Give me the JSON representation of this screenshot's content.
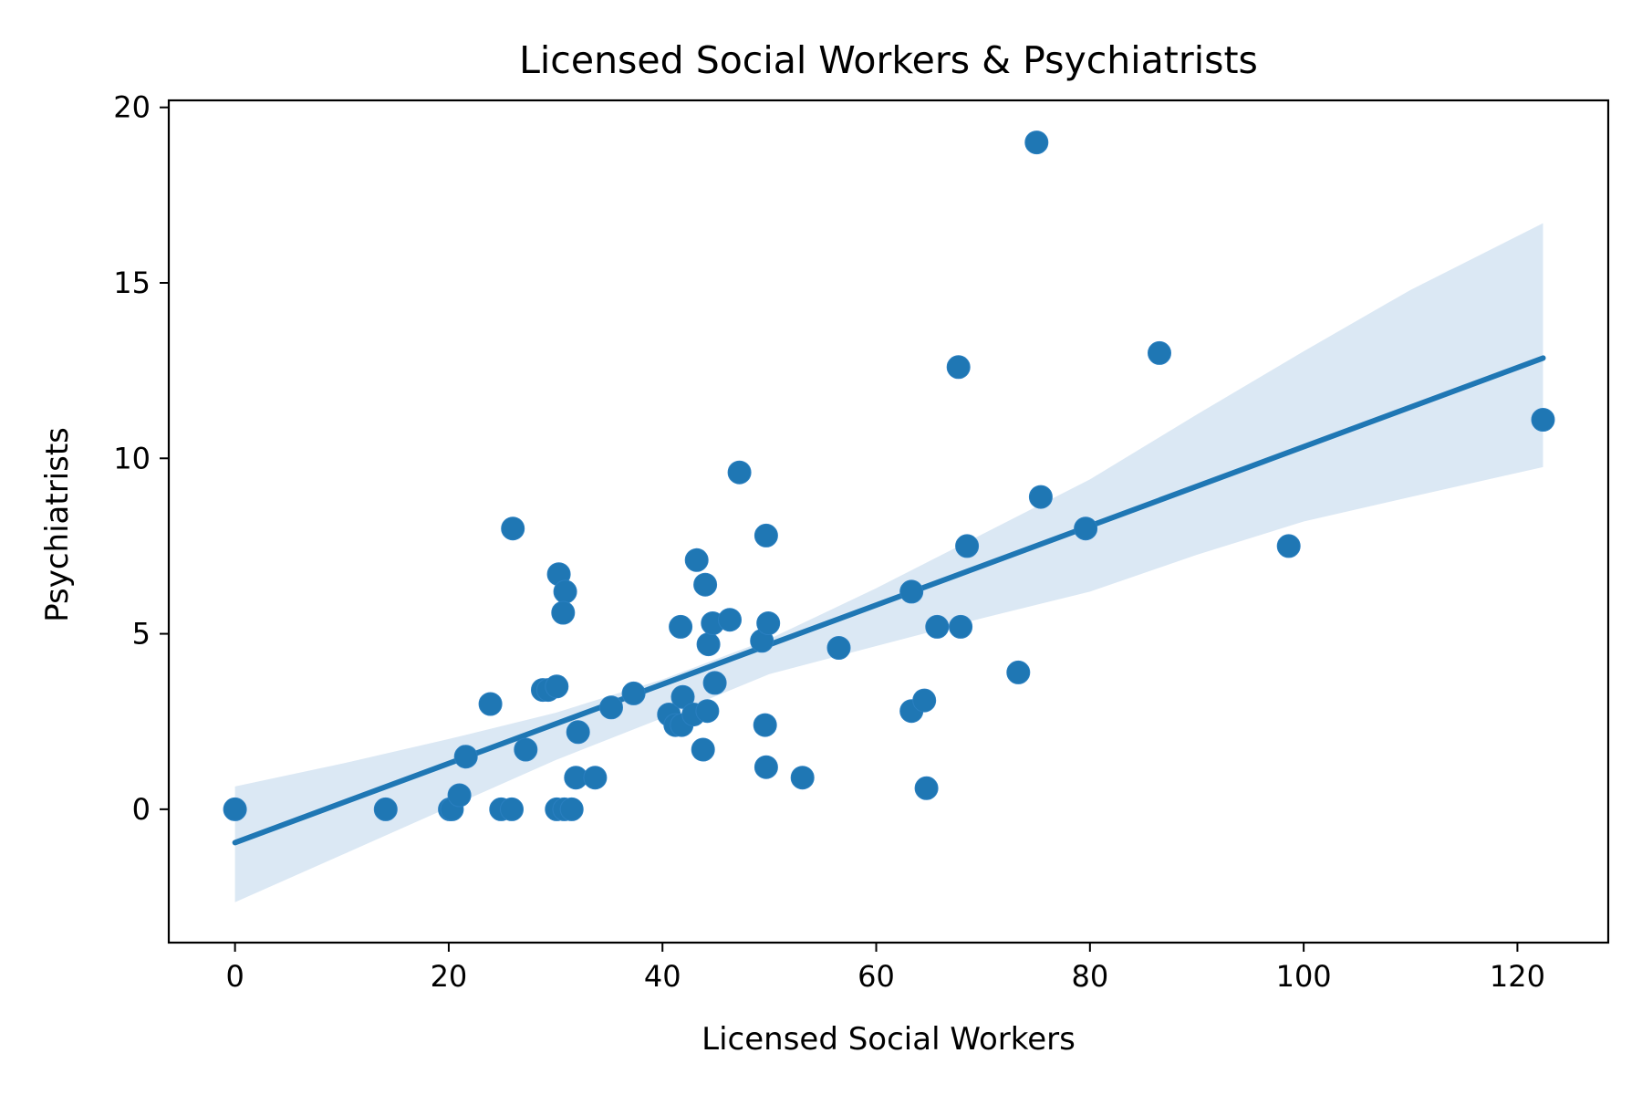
{
  "chart_data": {
    "type": "scatter",
    "title": "Licensed Social Workers & Psychiatrists",
    "xlabel": "Licensed Social Workers",
    "ylabel": "Psychiatrists",
    "xlim": [
      -6.2,
      128.5
    ],
    "ylim": [
      -3.8,
      20.2
    ],
    "x_ticks": [
      0,
      20,
      40,
      60,
      80,
      100,
      120
    ],
    "y_ticks": [
      0,
      5,
      10,
      15,
      20
    ],
    "grid": false,
    "legend": "none",
    "colors": {
      "points": "#1f77b4",
      "line": "#1f77b4",
      "band": "#dbe8f4",
      "axes": "#000000"
    },
    "points": [
      [
        0,
        0
      ],
      [
        14.1,
        0
      ],
      [
        20.1,
        0
      ],
      [
        20.3,
        0
      ],
      [
        21.0,
        0.4
      ],
      [
        21.6,
        1.5
      ],
      [
        23.9,
        3.0
      ],
      [
        24.9,
        0
      ],
      [
        25.9,
        0
      ],
      [
        26.0,
        8.0
      ],
      [
        27.2,
        1.7
      ],
      [
        28.8,
        3.4
      ],
      [
        29.3,
        3.4
      ],
      [
        30.1,
        3.5
      ],
      [
        30.1,
        0
      ],
      [
        30.8,
        0
      ],
      [
        31.5,
        0
      ],
      [
        30.3,
        6.7
      ],
      [
        30.9,
        6.2
      ],
      [
        30.7,
        5.6
      ],
      [
        31.9,
        0.9
      ],
      [
        32.1,
        2.2
      ],
      [
        33.7,
        0.9
      ],
      [
        35.2,
        2.9
      ],
      [
        37.3,
        3.3
      ],
      [
        40.6,
        2.7
      ],
      [
        41.2,
        2.4
      ],
      [
        41.8,
        2.4
      ],
      [
        41.9,
        3.2
      ],
      [
        41.7,
        5.2
      ],
      [
        42.9,
        2.7
      ],
      [
        43.8,
        1.7
      ],
      [
        44.2,
        2.8
      ],
      [
        43.2,
        7.1
      ],
      [
        44.0,
        6.4
      ],
      [
        44.3,
        4.7
      ],
      [
        44.7,
        5.3
      ],
      [
        44.9,
        3.6
      ],
      [
        46.3,
        5.4
      ],
      [
        47.2,
        9.6
      ],
      [
        49.3,
        4.8
      ],
      [
        49.7,
        7.8
      ],
      [
        49.9,
        5.3
      ],
      [
        49.6,
        2.4
      ],
      [
        49.7,
        1.2
      ],
      [
        53.1,
        0.9
      ],
      [
        56.5,
        4.6
      ],
      [
        63.3,
        6.2
      ],
      [
        63.3,
        2.8
      ],
      [
        64.5,
        3.1
      ],
      [
        64.7,
        0.6
      ],
      [
        65.7,
        5.2
      ],
      [
        67.7,
        12.6
      ],
      [
        67.9,
        5.2
      ],
      [
        68.5,
        7.5
      ],
      [
        73.3,
        3.9
      ],
      [
        75.0,
        19.0
      ],
      [
        75.4,
        8.9
      ],
      [
        79.6,
        8.0
      ],
      [
        86.5,
        13.0
      ],
      [
        98.6,
        7.5
      ],
      [
        122.4,
        11.1
      ]
    ],
    "regression": {
      "slope": 0.1128,
      "intercept": -0.95
    },
    "confidence_band": [
      [
        0,
        -2.65,
        0.65
      ],
      [
        10,
        -1.3,
        1.3
      ],
      [
        20,
        0.05,
        2.0
      ],
      [
        30,
        1.4,
        2.75
      ],
      [
        40,
        2.6,
        3.7
      ],
      [
        50,
        3.85,
        4.85
      ],
      [
        60,
        4.65,
        6.3
      ],
      [
        70,
        5.45,
        7.85
      ],
      [
        80,
        6.2,
        9.4
      ],
      [
        90,
        7.25,
        11.25
      ],
      [
        100,
        8.2,
        13.05
      ],
      [
        110,
        8.9,
        14.8
      ],
      [
        122.4,
        9.75,
        16.7
      ]
    ]
  }
}
